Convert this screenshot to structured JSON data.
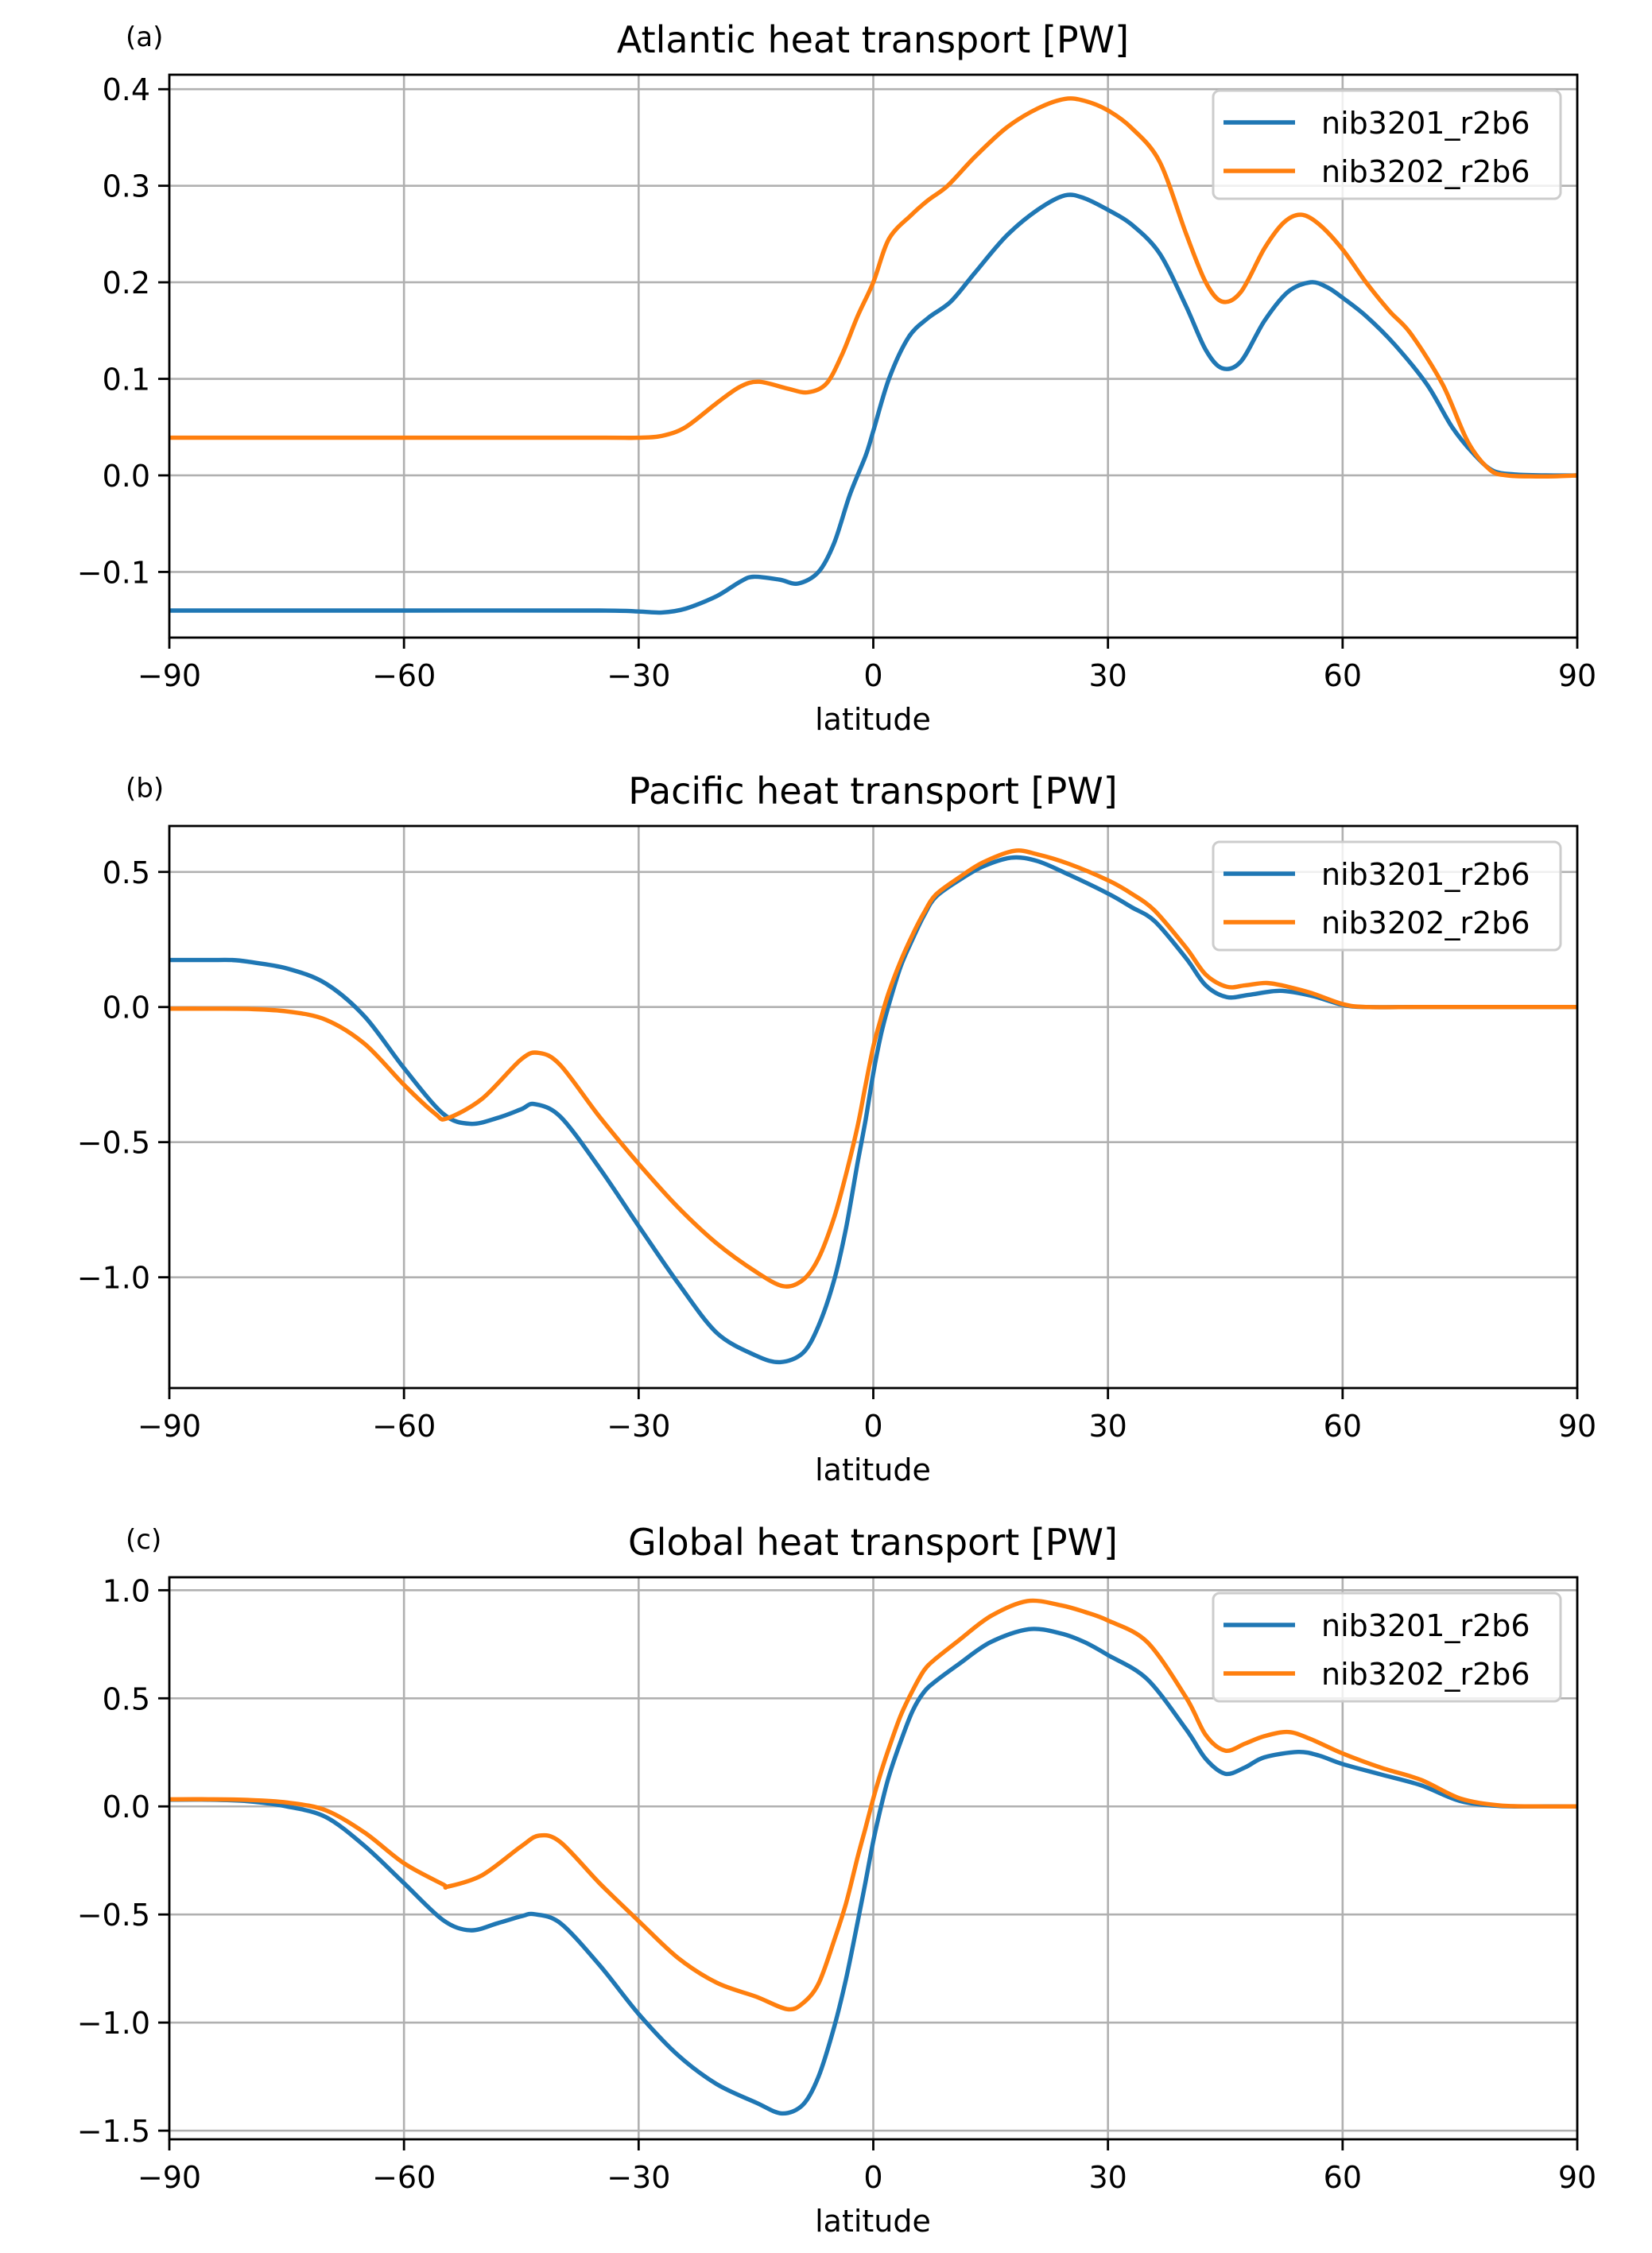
{
  "chart_data": [
    {
      "type": "line",
      "panel_label": "(a)",
      "title": "Atlantic heat transport [PW]",
      "xlabel": "latitude",
      "ylabel": "",
      "xlim": [
        -90,
        90
      ],
      "ylim": [
        -0.168,
        0.415
      ],
      "xticks": [
        -90,
        -60,
        -30,
        0,
        30,
        60,
        90
      ],
      "xtick_labels": [
        "−90",
        "−60",
        "−30",
        "0",
        "30",
        "60",
        "90"
      ],
      "yticks": [
        -0.1,
        0.0,
        0.1,
        0.2,
        0.3,
        0.4
      ],
      "ytick_labels": [
        "−0.1",
        "0.0",
        "0.1",
        "0.2",
        "0.3",
        "0.4"
      ],
      "grid": true,
      "legend": "top-right",
      "series": [
        {
          "name": "nib3201_r2b6",
          "color": "#1f77b4",
          "x": [
            -90,
            -60,
            -35,
            -30,
            -27,
            -24,
            -20,
            -17,
            -15.3,
            -12,
            -9.6,
            -7,
            -5,
            -3,
            -1,
            0,
            2,
            4.5,
            7,
            9.9,
            13,
            17,
            21,
            24.5,
            27,
            30,
            33,
            36.6,
            40,
            42.5,
            44.6,
            47,
            50,
            53,
            55.9,
            58,
            60,
            63,
            66.7,
            70.8,
            74,
            76.8,
            79.2,
            82,
            86,
            90
          ],
          "y": [
            -0.14,
            -0.14,
            -0.14,
            -0.141,
            -0.142,
            -0.138,
            -0.125,
            -0.11,
            -0.105,
            -0.108,
            -0.112,
            -0.1,
            -0.07,
            -0.02,
            0.02,
            0.046,
            0.1,
            0.143,
            0.163,
            0.18,
            0.21,
            0.248,
            0.275,
            0.29,
            0.287,
            0.275,
            0.26,
            0.23,
            0.175,
            0.13,
            0.111,
            0.118,
            0.16,
            0.19,
            0.2,
            0.195,
            0.184,
            0.165,
            0.135,
            0.094,
            0.05,
            0.022,
            0.005,
            0.001,
            0.0,
            0.0
          ]
        },
        {
          "name": "nib3202_r2b6",
          "color": "#ff7f0e",
          "x": [
            -90,
            -60,
            -35,
            -30,
            -27,
            -24,
            -20,
            -17,
            -14.6,
            -11,
            -8.4,
            -6,
            -4,
            -2,
            0,
            2,
            4.9,
            7,
            9.5,
            13,
            17,
            21,
            24.5,
            27,
            30,
            33,
            36.6,
            40,
            42.5,
            44.6,
            47,
            50,
            52.5,
            54.7,
            57,
            60,
            63,
            66,
            68.7,
            72.8,
            76,
            78.8,
            81,
            84,
            87,
            90
          ],
          "y": [
            0.039,
            0.039,
            0.039,
            0.039,
            0.041,
            0.05,
            0.075,
            0.092,
            0.097,
            0.09,
            0.086,
            0.095,
            0.125,
            0.165,
            0.2,
            0.245,
            0.27,
            0.285,
            0.3,
            0.33,
            0.36,
            0.38,
            0.39,
            0.388,
            0.378,
            0.36,
            0.325,
            0.25,
            0.2,
            0.18,
            0.19,
            0.235,
            0.262,
            0.27,
            0.26,
            0.234,
            0.2,
            0.17,
            0.147,
            0.094,
            0.035,
            0.006,
            0.0,
            -0.001,
            -0.001,
            0.0
          ]
        }
      ]
    },
    {
      "type": "line",
      "panel_label": "(b)",
      "title": "Pacific heat transport [PW]",
      "xlabel": "latitude",
      "ylabel": "",
      "xlim": [
        -90,
        90
      ],
      "ylim": [
        -1.41,
        0.67
      ],
      "xticks": [
        -90,
        -60,
        -30,
        0,
        30,
        60,
        90
      ],
      "xtick_labels": [
        "−90",
        "−60",
        "−30",
        "0",
        "30",
        "60",
        "90"
      ],
      "yticks": [
        -1.0,
        -0.5,
        0.0,
        0.5
      ],
      "ytick_labels": [
        "−1.0",
        "−0.5",
        "0.0",
        "0.5"
      ],
      "grid": true,
      "legend": "top-right",
      "series": [
        {
          "name": "nib3201_r2b6",
          "color": "#1f77b4",
          "x": [
            -90,
            -85,
            -82,
            -80,
            -75,
            -70,
            -65,
            -60,
            -55,
            -51.5,
            -48,
            -45,
            -43.3,
            -40,
            -35,
            -30,
            -25,
            -20,
            -15,
            -11.9,
            -9,
            -7,
            -5,
            -3.5,
            -2,
            -1,
            0,
            1,
            2,
            3.5,
            5,
            6.5,
            8,
            11,
            14,
            17.7,
            21,
            25,
            30,
            33,
            36,
            40,
            42.5,
            45.2,
            48,
            52,
            56,
            60,
            63,
            70,
            80,
            90
          ],
          "y": [
            0.174,
            0.174,
            0.174,
            0.168,
            0.143,
            0.087,
            -0.036,
            -0.226,
            -0.395,
            -0.432,
            -0.41,
            -0.378,
            -0.359,
            -0.406,
            -0.596,
            -0.81,
            -1.02,
            -1.206,
            -1.29,
            -1.314,
            -1.28,
            -1.18,
            -1.01,
            -0.82,
            -0.575,
            -0.42,
            -0.245,
            -0.1,
            0.01,
            0.15,
            0.25,
            0.34,
            0.408,
            0.47,
            0.52,
            0.553,
            0.54,
            0.49,
            0.42,
            0.37,
            0.317,
            0.18,
            0.08,
            0.037,
            0.045,
            0.06,
            0.042,
            0.008,
            0.0,
            0.0,
            0.0,
            0.0
          ]
        },
        {
          "name": "nib3202_r2b6",
          "color": "#ff7f0e",
          "x": [
            -90,
            -85,
            -80,
            -75,
            -70,
            -65,
            -60,
            -56,
            -54.5,
            -50,
            -45,
            -42.7,
            -40,
            -35,
            -30,
            -25,
            -20,
            -15,
            -11.5,
            -9,
            -7,
            -5,
            -3.5,
            -2,
            -1,
            0,
            1,
            2,
            3.5,
            5,
            6.5,
            8,
            11,
            14,
            18,
            21,
            25,
            30,
            33,
            36,
            40,
            42.5,
            45.2,
            47.5,
            50.3,
            53,
            56,
            60,
            63,
            70,
            80,
            90
          ],
          "y": [
            -0.006,
            -0.006,
            -0.007,
            -0.016,
            -0.047,
            -0.137,
            -0.288,
            -0.395,
            -0.412,
            -0.339,
            -0.193,
            -0.17,
            -0.215,
            -0.406,
            -0.58,
            -0.74,
            -0.875,
            -0.98,
            -1.033,
            -1.01,
            -0.93,
            -0.778,
            -0.62,
            -0.44,
            -0.29,
            -0.147,
            -0.04,
            0.056,
            0.17,
            0.266,
            0.35,
            0.416,
            0.48,
            0.535,
            0.578,
            0.565,
            0.53,
            0.469,
            0.42,
            0.356,
            0.219,
            0.12,
            0.075,
            0.08,
            0.089,
            0.075,
            0.052,
            0.011,
            0.0,
            0.0,
            0.0,
            0.0
          ]
        }
      ]
    },
    {
      "type": "line",
      "panel_label": "(c)",
      "title": "Global heat transport [PW]",
      "xlabel": "latitude",
      "ylabel": "",
      "xlim": [
        -90,
        90
      ],
      "ylim": [
        -1.54,
        1.06
      ],
      "xticks": [
        -90,
        -60,
        -30,
        0,
        30,
        60,
        90
      ],
      "xtick_labels": [
        "−90",
        "−60",
        "−30",
        "0",
        "30",
        "60",
        "90"
      ],
      "yticks": [
        -1.5,
        -1.0,
        -0.5,
        0.0,
        0.5,
        1.0
      ],
      "ytick_labels": [
        "−1.5",
        "−1.0",
        "−0.5",
        "0.0",
        "0.5",
        "1.0"
      ],
      "grid": true,
      "legend": "top-right",
      "series": [
        {
          "name": "nib3201_r2b6",
          "color": "#1f77b4",
          "x": [
            -90,
            -85,
            -80,
            -75,
            -70,
            -65,
            -60,
            -55,
            -51.5,
            -48,
            -45,
            -43.3,
            -40,
            -35,
            -30,
            -25,
            -20,
            -15,
            -11.7,
            -9,
            -7,
            -5,
            -3.5,
            -2,
            -1,
            0,
            1,
            2,
            3.5,
            5,
            6.5,
            8,
            11,
            15,
            19.9,
            24,
            27,
            30,
            35,
            40,
            42.5,
            45,
            47.5,
            50,
            54.3,
            57,
            60,
            65,
            70,
            75,
            80,
            85,
            90
          ],
          "y": [
            0.031,
            0.031,
            0.024,
            0.0,
            -0.049,
            -0.184,
            -0.355,
            -0.526,
            -0.573,
            -0.54,
            -0.508,
            -0.499,
            -0.54,
            -0.734,
            -0.96,
            -1.15,
            -1.285,
            -1.37,
            -1.42,
            -1.38,
            -1.25,
            -1.02,
            -0.8,
            -0.535,
            -0.35,
            -0.16,
            0.0,
            0.14,
            0.3,
            0.44,
            0.53,
            0.58,
            0.66,
            0.76,
            0.82,
            0.8,
            0.76,
            0.7,
            0.589,
            0.356,
            0.22,
            0.151,
            0.18,
            0.227,
            0.252,
            0.235,
            0.196,
            0.147,
            0.098,
            0.025,
            0.002,
            0.0,
            0.0
          ]
        },
        {
          "name": "nib3202_r2b6",
          "color": "#ff7f0e",
          "x": [
            -90,
            -85,
            -80,
            -75,
            -70,
            -65,
            -60,
            -55,
            -54.4,
            -50,
            -45,
            -42.7,
            -40,
            -35,
            -30,
            -25,
            -20,
            -15,
            -11,
            -9,
            -7,
            -5,
            -3.5,
            -2,
            -1,
            0,
            1,
            2,
            3.5,
            5,
            6.5,
            8,
            11,
            15,
            19.7,
            24,
            27,
            30,
            35,
            40,
            42.5,
            45,
            47.5,
            50,
            53.1,
            56,
            60,
            65,
            70,
            75,
            80,
            85,
            90
          ],
          "y": [
            0.033,
            0.033,
            0.03,
            0.018,
            -0.018,
            -0.122,
            -0.263,
            -0.361,
            -0.371,
            -0.318,
            -0.184,
            -0.135,
            -0.165,
            -0.355,
            -0.53,
            -0.7,
            -0.816,
            -0.88,
            -0.938,
            -0.91,
            -0.82,
            -0.619,
            -0.45,
            -0.234,
            -0.1,
            0.037,
            0.16,
            0.27,
            0.42,
            0.534,
            0.63,
            0.684,
            0.77,
            0.88,
            0.95,
            0.93,
            0.9,
            0.86,
            0.761,
            0.503,
            0.33,
            0.258,
            0.29,
            0.325,
            0.344,
            0.31,
            0.245,
            0.178,
            0.123,
            0.037,
            0.005,
            0.0,
            0.0
          ]
        }
      ]
    }
  ]
}
